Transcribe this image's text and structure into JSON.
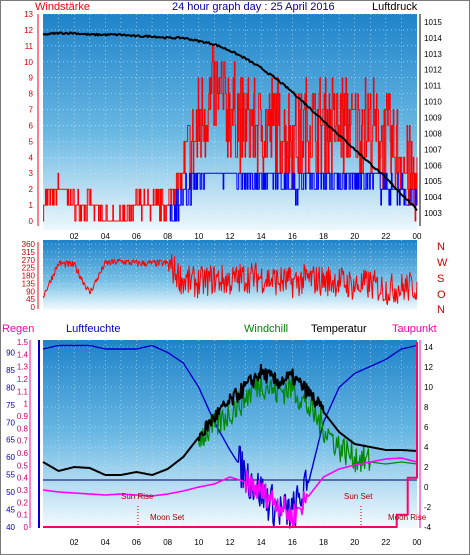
{
  "header": {
    "left_label": "Windstärke",
    "center_title": "24 hour graph day : 25 April 2016",
    "right_label": "Luftdruck"
  },
  "compass": [
    "N",
    "W",
    "S",
    "O",
    "N"
  ],
  "bottom_header": {
    "regen": "Regen",
    "luftfeuchte": "Luftfeuchte",
    "windchill": "Windchill",
    "temperatur": "Temperatur",
    "taupunkt": "Taupunkt"
  },
  "annotations": {
    "sun_rise": "Sun Rise",
    "sun_set": "Sun Set",
    "moon_set_1": "Moon Set",
    "moon_set_2": "Moon Rise"
  },
  "colors": {
    "wind": "#ff0000",
    "wind_gust_low": "#0000ff",
    "pressure": "#000000",
    "humidity": "#0000cc",
    "windchill": "#008800",
    "temperature": "#000000",
    "dewpoint": "#ff00ff",
    "rain": "#ff0066"
  },
  "chart_data": [
    {
      "type": "line",
      "title": "24 hour graph day : 25 April 2016",
      "x_ticks": [
        "02",
        "04",
        "06",
        "08",
        "10",
        "12",
        "14",
        "16",
        "18",
        "20",
        "22",
        "00"
      ],
      "left_axis": {
        "label": "Windstärke",
        "ticks": [
          0,
          1,
          2,
          3,
          4,
          5,
          6,
          7,
          8,
          9,
          10,
          11,
          12,
          13
        ],
        "ylim": [
          0,
          13
        ]
      },
      "right_axis": {
        "label": "Luftdruck",
        "ticks": [
          1003,
          1004,
          1005,
          1006,
          1007,
          1008,
          1009,
          1010,
          1011,
          1012,
          1013,
          1014,
          1015
        ],
        "ylim": [
          1002.5,
          1015.5
        ]
      },
      "series": [
        {
          "name": "Luftdruck",
          "x": [
            0,
            1,
            2,
            3,
            4,
            5,
            6,
            7,
            8,
            9,
            10,
            11,
            12,
            13,
            14,
            15,
            16,
            17,
            18,
            19,
            20,
            21,
            22,
            23,
            24
          ],
          "values": [
            1014.2,
            1014.3,
            1014.3,
            1014.2,
            1014.2,
            1014.2,
            1014.1,
            1014.1,
            1014.0,
            1014.0,
            1013.8,
            1013.6,
            1013.2,
            1012.7,
            1012.1,
            1011.4,
            1010.6,
            1009.7,
            1008.8,
            1007.9,
            1007.0,
            1006.1,
            1005.2,
            1004.2,
            1003.2
          ]
        },
        {
          "name": "Windstärke",
          "x": [
            0,
            1,
            2,
            3,
            4,
            5,
            6,
            7,
            8,
            9,
            10,
            11,
            12,
            13,
            14,
            15,
            16,
            17,
            18,
            19,
            20,
            21,
            22,
            23,
            24
          ],
          "values": [
            1,
            2,
            1,
            1,
            0,
            0,
            1,
            1,
            1,
            3,
            6,
            8,
            7,
            6,
            6,
            6,
            5,
            6,
            6,
            6,
            6,
            6,
            5,
            4,
            2
          ]
        }
      ]
    },
    {
      "type": "line",
      "title": "",
      "x_ticks": [],
      "left_axis": {
        "label": "",
        "ticks": [
          0,
          45,
          90,
          135,
          180,
          225,
          270,
          315,
          360
        ],
        "ylim": [
          0,
          360
        ]
      },
      "right_axis": {
        "label": "",
        "ticks": [
          "N",
          "W",
          "S",
          "O",
          "N"
        ]
      },
      "series": [
        {
          "name": "",
          "x": [
            0,
            1,
            2,
            3,
            4,
            5,
            6,
            7,
            8,
            9,
            10,
            11,
            12,
            13,
            14,
            15,
            16,
            17,
            18,
            19,
            20,
            21,
            22,
            23,
            24
          ],
          "values": [
            60,
            250,
            240,
            80,
            250,
            260,
            250,
            250,
            250,
            150,
            140,
            160,
            150,
            170,
            170,
            150,
            140,
            160,
            150,
            150,
            120,
            130,
            100,
            110,
            120
          ]
        }
      ]
    },
    {
      "type": "line",
      "title": "",
      "x_ticks": [
        "02",
        "04",
        "06",
        "08",
        "10",
        "12",
        "14",
        "16",
        "18",
        "20",
        "22",
        "00"
      ],
      "left_axis_rain": {
        "label": "Regen",
        "ticks": [
          0,
          0.1,
          0.2,
          0.3,
          0.4,
          0.5,
          0.6,
          0.7,
          0.8,
          0.9,
          1,
          1.1,
          1.2,
          1.3,
          1.4,
          1.5
        ],
        "ylim": [
          0,
          1.5
        ]
      },
      "left_axis_humidity": {
        "label": "Luftfeuchte",
        "ticks": [
          40,
          45,
          50,
          55,
          60,
          65,
          70,
          75,
          80,
          85,
          90
        ],
        "ylim": [
          40,
          93
        ]
      },
      "right_axis": {
        "label": "Taupunkt",
        "ticks": [
          -4,
          -2,
          0,
          2,
          4,
          6,
          8,
          10,
          12,
          14
        ],
        "ylim": [
          -4,
          14.5
        ]
      },
      "series": [
        {
          "name": "Luftfeuchte",
          "x": [
            0,
            1,
            2,
            3,
            4,
            5,
            6,
            7,
            8,
            9,
            10,
            11,
            12,
            13,
            14,
            15,
            16,
            17,
            18,
            19,
            20,
            21,
            22,
            23,
            24
          ],
          "values": [
            91,
            92,
            92,
            92,
            91,
            91,
            91,
            92,
            90,
            87,
            80,
            70,
            62,
            55,
            50,
            45,
            44,
            52,
            70,
            80,
            84,
            86,
            88,
            91,
            92
          ]
        },
        {
          "name": "Temperatur",
          "x": [
            0,
            1,
            2,
            3,
            4,
            5,
            6,
            7,
            8,
            9,
            10,
            11,
            12,
            13,
            14,
            15,
            16,
            17,
            18,
            19,
            20,
            21,
            22,
            23,
            24
          ],
          "values": [
            2.5,
            1.6,
            2.0,
            1.9,
            1.2,
            1.2,
            1.5,
            1.2,
            1.8,
            3.0,
            5.0,
            7.0,
            8.5,
            10.0,
            11.5,
            10.5,
            11.0,
            9.5,
            7.5,
            5.5,
            4.3,
            4.0,
            3.7,
            3.7,
            3.6
          ]
        },
        {
          "name": "Windchill",
          "x": [
            0,
            1,
            2,
            3,
            4,
            5,
            6,
            7,
            8,
            9,
            10,
            11,
            12,
            13,
            14,
            15,
            16,
            17,
            18,
            19,
            20,
            21,
            22,
            23,
            24
          ],
          "values": [
            2.5,
            1.6,
            2.0,
            1.9,
            1.2,
            1.2,
            1.5,
            1.2,
            1.8,
            3.0,
            5.0,
            6.0,
            7.5,
            9.0,
            10.5,
            9.5,
            10.0,
            8.0,
            6.0,
            4.0,
            3.0,
            2.5,
            2.3,
            2.5,
            2.3
          ]
        },
        {
          "name": "Taupunkt",
          "x": [
            0,
            1,
            2,
            3,
            4,
            5,
            6,
            7,
            8,
            9,
            10,
            11,
            12,
            13,
            14,
            15,
            16,
            17,
            18,
            19,
            20,
            21,
            22,
            23,
            24
          ],
          "values": [
            -0.3,
            -0.5,
            -0.6,
            -0.7,
            -0.8,
            -0.7,
            -0.8,
            -0.9,
            -0.7,
            -0.4,
            0.0,
            0.3,
            1.0,
            0.5,
            -0.5,
            -1.5,
            -3.0,
            -1.0,
            1.0,
            1.8,
            2.2,
            2.5,
            2.8,
            2.9,
            2.5
          ]
        },
        {
          "name": "Regen",
          "x": [
            0,
            22,
            22.7,
            23.4,
            24
          ],
          "values": [
            0,
            0,
            0.1,
            0.4,
            1.5
          ]
        }
      ]
    }
  ]
}
